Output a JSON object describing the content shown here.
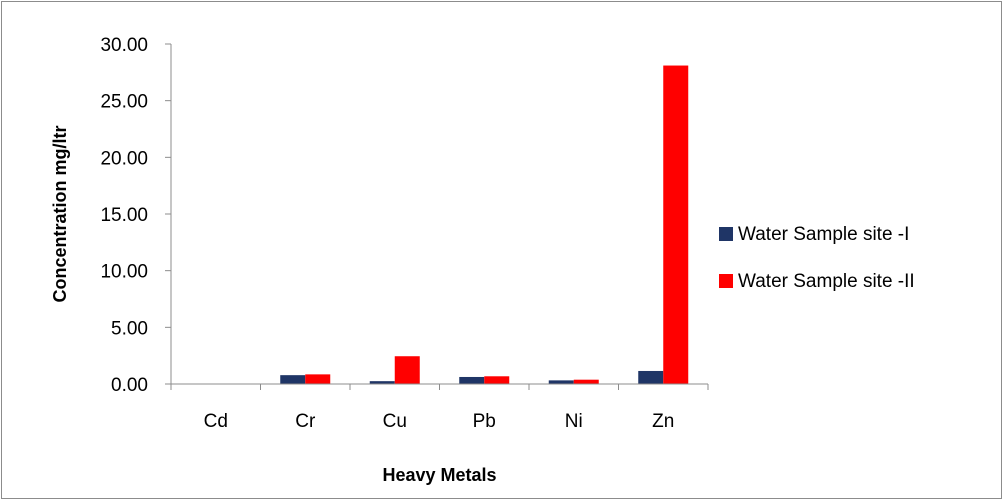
{
  "chart_data": {
    "type": "bar",
    "title": "",
    "xlabel": "Heavy Metals",
    "ylabel": "Concentration  mg/ltr",
    "categories": [
      "Cd",
      "Cr",
      "Cu",
      "Pb",
      "Ni",
      "Zn"
    ],
    "series": [
      {
        "name": "Water Sample site -I",
        "color": "#1f3566",
        "values": [
          0.0,
          0.78,
          0.25,
          0.62,
          0.32,
          1.15
        ]
      },
      {
        "name": "Water Sample site -II",
        "color": "#ff0000",
        "values": [
          0.0,
          0.85,
          2.45,
          0.68,
          0.38,
          28.1
        ]
      }
    ],
    "ylim": [
      0,
      30
    ],
    "yticks": [
      "0.00",
      "5.00",
      "10.00",
      "15.00",
      "20.00",
      "25.00",
      "30.00"
    ],
    "grid": false,
    "legend_position": "right"
  }
}
